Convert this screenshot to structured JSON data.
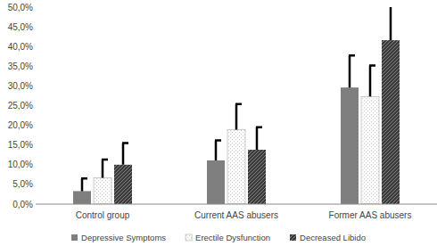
{
  "chart_data": {
    "type": "bar",
    "categories": [
      "Control group",
      "Current AAS abusers",
      "Former AAS abusers"
    ],
    "series": [
      {
        "name": "Depressive Symptoms",
        "color": "#7f7f7f",
        "values": [
          3.3,
          11.1,
          29.6
        ],
        "errors": [
          3.2,
          5.1,
          8.1
        ]
      },
      {
        "name": "Erectile Dysfunction",
        "color": "#d0d0d0",
        "values": [
          6.7,
          18.9,
          27.3
        ],
        "errors": [
          4.6,
          6.5,
          7.9
        ]
      },
      {
        "name": "Decreased Libido",
        "color": "#3a3a3a",
        "values": [
          10.0,
          13.8,
          41.6
        ],
        "errors": [
          5.5,
          5.7,
          8.8
        ]
      }
    ],
    "ylim": [
      0,
      50
    ],
    "yticks": [
      {
        "value": 0,
        "label": "0,0%"
      },
      {
        "value": 5,
        "label": "5,0%"
      },
      {
        "value": 10,
        "label": "10,0%"
      },
      {
        "value": 15,
        "label": "15,0%"
      },
      {
        "value": 20,
        "label": "20,0%"
      },
      {
        "value": 25,
        "label": "25,0%"
      },
      {
        "value": 30,
        "label": "30,0%"
      },
      {
        "value": 35,
        "label": "35,0%"
      },
      {
        "value": 40,
        "label": "40,0%"
      },
      {
        "value": 45,
        "label": "45,0%"
      },
      {
        "value": 50,
        "label": "50,0%"
      }
    ],
    "grid": false,
    "legend": "bottom"
  }
}
